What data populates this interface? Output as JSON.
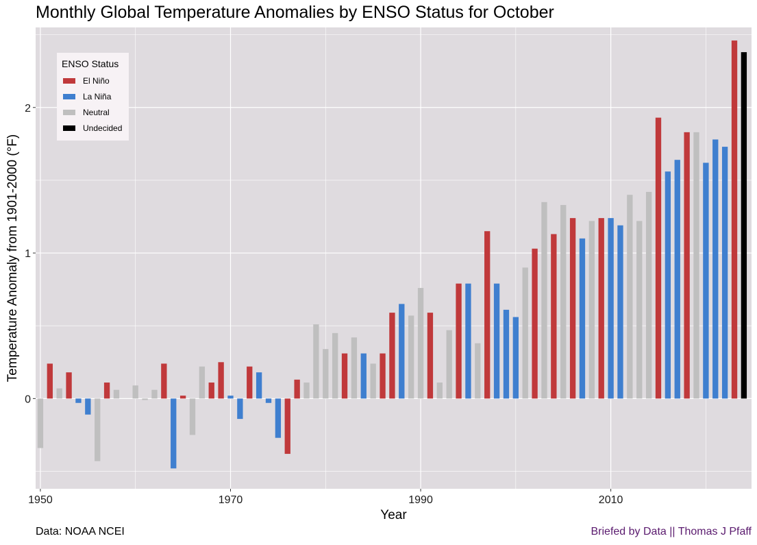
{
  "title": "Monthly Global Temperature Anomalies by ENSO Status for October",
  "caption_left": "Data: NOAA NCEI",
  "caption_right": "Briefed by Data || Thomas J Pfaff",
  "colors": {
    "panel": "#dfdbdf",
    "grid": "#ffffff",
    "caption_right": "#5a1a6e",
    "El Niño": "#c0393b",
    "La Niña": "#3f7fcf",
    "Neutral": "#bfbfbf",
    "Undecided": "#000000"
  },
  "chart_data": {
    "type": "bar",
    "xlabel": "Year",
    "ylabel": "Temperature Anomaly from 1901-2000  (°F)",
    "xlim": [
      1949.5,
      2024.8
    ],
    "ylim": [
      -0.62,
      2.55
    ],
    "x_ticks": [
      1950,
      1970,
      1990,
      2010
    ],
    "y_ticks": [
      0,
      1,
      2
    ],
    "grid": true,
    "legend": {
      "title": "ENSO Status",
      "position": "top-left",
      "entries": [
        "El Niño",
        "La Niña",
        "Neutral",
        "Undecided"
      ]
    },
    "bars": [
      {
        "year": 1950,
        "value": -0.34,
        "status": "Neutral"
      },
      {
        "year": 1951,
        "value": 0.24,
        "status": "El Niño"
      },
      {
        "year": 1952,
        "value": 0.07,
        "status": "Neutral"
      },
      {
        "year": 1953,
        "value": 0.18,
        "status": "El Niño"
      },
      {
        "year": 1954,
        "value": -0.03,
        "status": "La Niña"
      },
      {
        "year": 1955,
        "value": -0.11,
        "status": "La Niña"
      },
      {
        "year": 1956,
        "value": -0.43,
        "status": "Neutral"
      },
      {
        "year": 1957,
        "value": 0.11,
        "status": "El Niño"
      },
      {
        "year": 1958,
        "value": 0.06,
        "status": "Neutral"
      },
      {
        "year": 1960,
        "value": 0.09,
        "status": "Neutral"
      },
      {
        "year": 1961,
        "value": -0.01,
        "status": "Neutral"
      },
      {
        "year": 1962,
        "value": 0.06,
        "status": "Neutral"
      },
      {
        "year": 1963,
        "value": 0.24,
        "status": "El Niño"
      },
      {
        "year": 1964,
        "value": -0.48,
        "status": "La Niña"
      },
      {
        "year": 1965,
        "value": 0.02,
        "status": "El Niño"
      },
      {
        "year": 1966,
        "value": -0.25,
        "status": "Neutral"
      },
      {
        "year": 1967,
        "value": 0.22,
        "status": "Neutral"
      },
      {
        "year": 1968,
        "value": 0.11,
        "status": "El Niño"
      },
      {
        "year": 1969,
        "value": 0.25,
        "status": "El Niño"
      },
      {
        "year": 1970,
        "value": 0.02,
        "status": "La Niña"
      },
      {
        "year": 1971,
        "value": -0.14,
        "status": "La Niña"
      },
      {
        "year": 1972,
        "value": 0.22,
        "status": "El Niño"
      },
      {
        "year": 1973,
        "value": 0.18,
        "status": "La Niña"
      },
      {
        "year": 1974,
        "value": -0.03,
        "status": "La Niña"
      },
      {
        "year": 1975,
        "value": -0.27,
        "status": "La Niña"
      },
      {
        "year": 1976,
        "value": -0.38,
        "status": "El Niño"
      },
      {
        "year": 1977,
        "value": 0.13,
        "status": "El Niño"
      },
      {
        "year": 1978,
        "value": 0.11,
        "status": "Neutral"
      },
      {
        "year": 1979,
        "value": 0.51,
        "status": "Neutral"
      },
      {
        "year": 1980,
        "value": 0.34,
        "status": "Neutral"
      },
      {
        "year": 1981,
        "value": 0.45,
        "status": "Neutral"
      },
      {
        "year": 1982,
        "value": 0.31,
        "status": "El Niño"
      },
      {
        "year": 1983,
        "value": 0.42,
        "status": "Neutral"
      },
      {
        "year": 1984,
        "value": 0.31,
        "status": "La Niña"
      },
      {
        "year": 1985,
        "value": 0.24,
        "status": "Neutral"
      },
      {
        "year": 1986,
        "value": 0.31,
        "status": "El Niño"
      },
      {
        "year": 1987,
        "value": 0.59,
        "status": "El Niño"
      },
      {
        "year": 1988,
        "value": 0.65,
        "status": "La Niña"
      },
      {
        "year": 1989,
        "value": 0.57,
        "status": "Neutral"
      },
      {
        "year": 1990,
        "value": 0.76,
        "status": "Neutral"
      },
      {
        "year": 1991,
        "value": 0.59,
        "status": "El Niño"
      },
      {
        "year": 1992,
        "value": 0.11,
        "status": "Neutral"
      },
      {
        "year": 1993,
        "value": 0.47,
        "status": "Neutral"
      },
      {
        "year": 1994,
        "value": 0.79,
        "status": "El Niño"
      },
      {
        "year": 1995,
        "value": 0.79,
        "status": "La Niña"
      },
      {
        "year": 1996,
        "value": 0.38,
        "status": "Neutral"
      },
      {
        "year": 1997,
        "value": 1.15,
        "status": "El Niño"
      },
      {
        "year": 1998,
        "value": 0.79,
        "status": "La Niña"
      },
      {
        "year": 1999,
        "value": 0.61,
        "status": "La Niña"
      },
      {
        "year": 2000,
        "value": 0.56,
        "status": "La Niña"
      },
      {
        "year": 2001,
        "value": 0.9,
        "status": "Neutral"
      },
      {
        "year": 2002,
        "value": 1.03,
        "status": "El Niño"
      },
      {
        "year": 2003,
        "value": 1.35,
        "status": "Neutral"
      },
      {
        "year": 2004,
        "value": 1.13,
        "status": "El Niño"
      },
      {
        "year": 2005,
        "value": 1.33,
        "status": "Neutral"
      },
      {
        "year": 2006,
        "value": 1.24,
        "status": "El Niño"
      },
      {
        "year": 2007,
        "value": 1.1,
        "status": "La Niña"
      },
      {
        "year": 2008,
        "value": 1.22,
        "status": "Neutral"
      },
      {
        "year": 2009,
        "value": 1.24,
        "status": "El Niño"
      },
      {
        "year": 2010,
        "value": 1.24,
        "status": "La Niña"
      },
      {
        "year": 2011,
        "value": 1.19,
        "status": "La Niña"
      },
      {
        "year": 2012,
        "value": 1.4,
        "status": "Neutral"
      },
      {
        "year": 2013,
        "value": 1.22,
        "status": "Neutral"
      },
      {
        "year": 2014,
        "value": 1.42,
        "status": "Neutral"
      },
      {
        "year": 2015,
        "value": 1.93,
        "status": "El Niño"
      },
      {
        "year": 2016,
        "value": 1.56,
        "status": "La Niña"
      },
      {
        "year": 2017,
        "value": 1.64,
        "status": "La Niña"
      },
      {
        "year": 2018,
        "value": 1.83,
        "status": "El Niño"
      },
      {
        "year": 2019,
        "value": 1.83,
        "status": "Neutral"
      },
      {
        "year": 2020,
        "value": 1.62,
        "status": "La Niña"
      },
      {
        "year": 2021,
        "value": 1.78,
        "status": "La Niña"
      },
      {
        "year": 2022,
        "value": 1.73,
        "status": "La Niña"
      },
      {
        "year": 2023,
        "value": 2.46,
        "status": "El Niño"
      },
      {
        "year": 2024,
        "value": 2.38,
        "status": "Undecided"
      }
    ]
  }
}
